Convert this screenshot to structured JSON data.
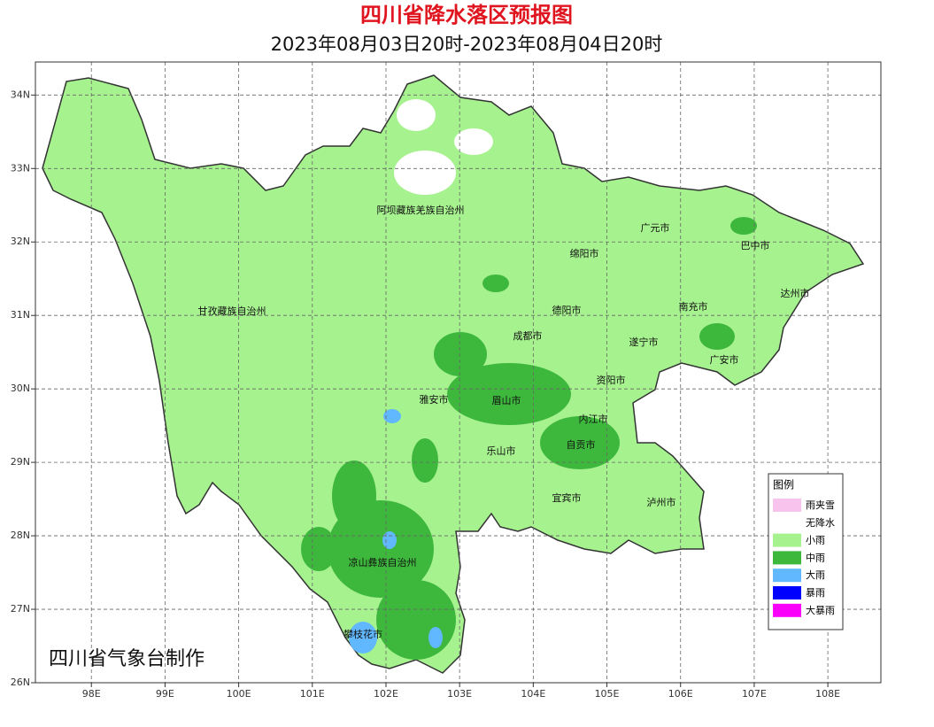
{
  "header": {
    "title": "四川省降水落区预报图",
    "subtitle": "2023年08月03日20时-2023年08月04日20时"
  },
  "map": {
    "xlim": [
      97.24,
      108.72
    ],
    "ylim": [
      26,
      34.45
    ],
    "xticks": [
      {
        "value": 98,
        "label": "98E"
      },
      {
        "value": 99,
        "label": "99E"
      },
      {
        "value": 100,
        "label": "100E"
      },
      {
        "value": 101,
        "label": "101E"
      },
      {
        "value": 102,
        "label": "102E"
      },
      {
        "value": 103,
        "label": "103E"
      },
      {
        "value": 104,
        "label": "104E"
      },
      {
        "value": 105,
        "label": "105E"
      },
      {
        "value": 106,
        "label": "106E"
      },
      {
        "value": 107,
        "label": "107E"
      },
      {
        "value": 108,
        "label": "108E"
      }
    ],
    "yticks": [
      {
        "value": 26,
        "label": "26N"
      },
      {
        "value": 27,
        "label": "27N"
      },
      {
        "value": 28,
        "label": "28N"
      },
      {
        "value": 29,
        "label": "29N"
      },
      {
        "value": 30,
        "label": "30N"
      },
      {
        "value": 31,
        "label": "31N"
      },
      {
        "value": 32,
        "label": "32N"
      },
      {
        "value": 33,
        "label": "33N"
      },
      {
        "value": 34,
        "label": "34N"
      }
    ],
    "grid": true,
    "regions": [
      "阿坝藏族羌族自治州",
      "广元市",
      "巴中市",
      "绵阳市",
      "甘孜藏族自治州",
      "德阳市",
      "南充市",
      "达州市",
      "成都市",
      "遂宁市",
      "广安市",
      "资阳市",
      "雅安市",
      "眉山市",
      "内江市",
      "自贡市",
      "乐山市",
      "宜宾市",
      "泸州市",
      "凉山彝族自治州",
      "攀枝花市"
    ],
    "credit": "四川省气象台制作"
  },
  "legend": {
    "title": "图例",
    "items": [
      {
        "label": "雨夹雪",
        "color": "#f8c4ee"
      },
      {
        "label": "无降水",
        "color": "#ffffff"
      },
      {
        "label": "小雨",
        "color": "#a6f28f"
      },
      {
        "label": "中雨",
        "color": "#3db83d"
      },
      {
        "label": "大雨",
        "color": "#61b8ff"
      },
      {
        "label": "暴雨",
        "color": "#0000fe"
      },
      {
        "label": "大暴雨",
        "color": "#fa00fa"
      }
    ]
  }
}
